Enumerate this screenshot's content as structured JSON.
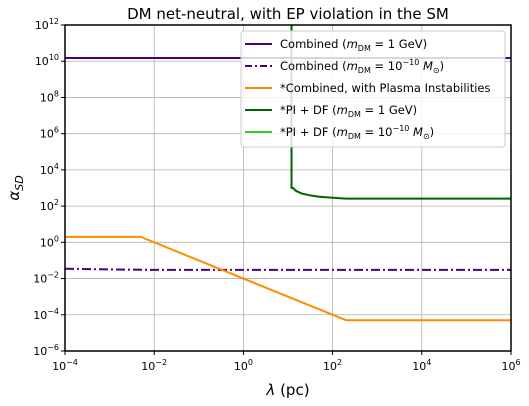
{
  "chart_data": {
    "type": "line",
    "title": "DM net-neutral, with EP violation in the SM",
    "xlabel": "λ (pc)",
    "ylabel": "α_SD",
    "x_scale": "log",
    "y_scale": "log",
    "xlim": [
      0.0001,
      1000000
    ],
    "ylim": [
      1e-06,
      1000000000000
    ],
    "x_ticks": [
      0.0001,
      0.01,
      1,
      100,
      10000,
      1000000
    ],
    "x_tick_labels": [
      {
        "base": "10",
        "exp": "−4"
      },
      {
        "base": "10",
        "exp": "−2"
      },
      {
        "base": "10",
        "exp": "0"
      },
      {
        "base": "10",
        "exp": "2"
      },
      {
        "base": "10",
        "exp": "4"
      },
      {
        "base": "10",
        "exp": "6"
      }
    ],
    "y_ticks": [
      1e-06,
      0.0001,
      0.01,
      1,
      100,
      10000,
      1000000,
      100000000,
      10000000000,
      1000000000000
    ],
    "y_tick_labels": [
      {
        "base": "10",
        "exp": "−6"
      },
      {
        "base": "10",
        "exp": "−4"
      },
      {
        "base": "10",
        "exp": "−2"
      },
      {
        "base": "10",
        "exp": "0"
      },
      {
        "base": "10",
        "exp": "2"
      },
      {
        "base": "10",
        "exp": "4"
      },
      {
        "base": "10",
        "exp": "6"
      },
      {
        "base": "10",
        "exp": "8"
      },
      {
        "base": "10",
        "exp": "10"
      },
      {
        "base": "10",
        "exp": "12"
      }
    ],
    "grid": true,
    "legend_position": "top-right",
    "series": [
      {
        "name": "Combined (m_DM = 1 GeV)",
        "color": "#4b0082",
        "dash": "solid",
        "x": [
          0.0001,
          1000000
        ],
        "y": [
          15000000000,
          15000000000
        ]
      },
      {
        "name": "Combined (m_DM = 10^-10 M_⊙)",
        "color": "#4b0082",
        "dash": "dashdot",
        "x": [
          0.0001,
          0.001,
          0.01,
          1000000
        ],
        "y": [
          0.035,
          0.032,
          0.03,
          0.03
        ]
      },
      {
        "name": "*Combined, with Plasma Instabilities",
        "color": "#ff8c00",
        "dash": "solid",
        "x": [
          0.0001,
          0.005,
          200,
          1000000
        ],
        "y": [
          2,
          2,
          5e-05,
          5e-05
        ]
      },
      {
        "name": "*PI + DF (m_DM = 1 GeV)",
        "color": "#006400",
        "dash": "solid",
        "x": [
          12,
          12,
          13,
          15,
          20,
          30,
          50,
          100,
          200,
          1000000
        ],
        "y": [
          1000000000000,
          1000,
          1000,
          700,
          500,
          400,
          330,
          290,
          260,
          260
        ]
      },
      {
        "name": "*PI + DF (m_DM = 10^-10 M_⊙)",
        "color": "#32cd32",
        "dash": "solid",
        "x": [],
        "y": []
      }
    ],
    "legend": [
      {
        "label": "Combined (",
        "math": "m",
        "sub": "DM",
        "mid": " = 1 GeV)",
        "sup": ""
      },
      {
        "label": "Combined (",
        "math": "m",
        "sub": "DM",
        "mid": " = 10",
        "sup": "−10",
        "tail": " M",
        "tailsub": "⊙",
        "end": ")"
      },
      {
        "label": "*Combined, with Plasma Instabilities"
      },
      {
        "label": "*PI + DF (",
        "math": "m",
        "sub": "DM",
        "mid": " = 1 GeV)"
      },
      {
        "label": "*PI + DF (",
        "math": "m",
        "sub": "DM",
        "mid": " = 10",
        "sup": "−10",
        "tail": " M",
        "tailsub": "⊙",
        "end": ")"
      }
    ]
  }
}
